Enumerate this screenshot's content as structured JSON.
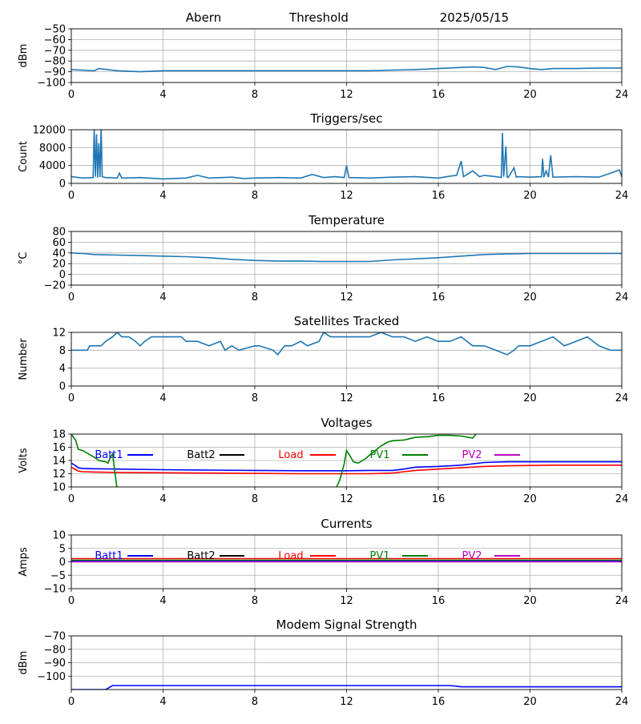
{
  "header": {
    "station": "Abern",
    "kind": "Threshold",
    "date": "2025/05/15"
  },
  "colors": {
    "series": "#1f77b4",
    "grid": "#b0b0b0",
    "Batt1": "#0000ff",
    "Batt2": "#000000",
    "Load": "#ff0000",
    "PV1": "#008000",
    "PV2": "#bf00bf",
    "modem": "#0000ff"
  },
  "chart_data": [
    {
      "type": "line",
      "title": "",
      "xlabel": "",
      "ylabel": "dBm",
      "xlim": [
        0,
        24
      ],
      "ylim": [
        -100,
        -50
      ],
      "xticks": [
        0,
        4,
        8,
        12,
        16,
        20,
        24
      ],
      "yticks": [
        -100,
        -90,
        -80,
        -70,
        -60,
        -50
      ],
      "grid": true,
      "series": [
        {
          "color": "#1f77b4",
          "x": [
            0,
            1,
            1.2,
            2,
            3,
            4,
            6,
            8,
            10,
            12,
            13,
            14,
            15,
            16,
            17,
            17.5,
            18,
            18.5,
            19,
            19.5,
            20,
            20.5,
            21,
            22,
            23,
            24
          ],
          "y": [
            -88,
            -89,
            -87,
            -89,
            -90,
            -89,
            -89,
            -89,
            -89,
            -89,
            -89,
            -88.5,
            -88,
            -87,
            -86,
            -85.5,
            -86,
            -88,
            -85,
            -85.5,
            -87,
            -88,
            -87,
            -87,
            -86.5,
            -86.5
          ]
        }
      ]
    },
    {
      "type": "line",
      "title": "Triggers/sec",
      "xlabel": "",
      "ylabel": "Count",
      "xlim": [
        0,
        24
      ],
      "ylim": [
        0,
        12000
      ],
      "xticks": [
        0,
        4,
        8,
        12,
        16,
        20,
        24
      ],
      "yticks": [
        0,
        4000,
        8000,
        12000
      ],
      "grid": true,
      "series": [
        {
          "color": "#1f77b4",
          "x": [
            0,
            0.5,
            0.95,
            1.0,
            1.05,
            1.1,
            1.15,
            1.2,
            1.25,
            1.3,
            1.35,
            1.5,
            2.0,
            2.1,
            2.2,
            3,
            4,
            5,
            5.5,
            6,
            7,
            7.5,
            8,
            9,
            10,
            10.5,
            11,
            11.5,
            11.9,
            12.0,
            12.1,
            13,
            14,
            15,
            16,
            16.5,
            16.8,
            17.0,
            17.1,
            17.5,
            17.8,
            18,
            18.5,
            18.75,
            18.8,
            18.85,
            18.95,
            19.0,
            19.05,
            19.3,
            19.4,
            19.5,
            20,
            20.5,
            20.55,
            20.6,
            20.7,
            20.8,
            20.9,
            21,
            22,
            23,
            23.9,
            24
          ],
          "y": [
            1500,
            1200,
            1300,
            12000,
            1500,
            11000,
            1300,
            9000,
            1400,
            12500,
            1500,
            1300,
            1200,
            2300,
            1200,
            1300,
            1000,
            1200,
            1800,
            1200,
            1400,
            1100,
            1200,
            1300,
            1200,
            2000,
            1300,
            1500,
            1300,
            4000,
            1300,
            1200,
            1400,
            1500,
            1200,
            1600,
            1800,
            5000,
            1500,
            2800,
            1500,
            1800,
            1500,
            1300,
            11300,
            1500,
            8300,
            1400,
            1300,
            3500,
            1400,
            1500,
            1400,
            1500,
            5500,
            1400,
            2800,
            1400,
            6300,
            1400,
            1500,
            1400,
            3000,
            1500
          ]
        }
      ]
    },
    {
      "type": "line",
      "title": "Temperature",
      "xlabel": "",
      "ylabel": "°C",
      "xlim": [
        0,
        24
      ],
      "ylim": [
        -20,
        80
      ],
      "xticks": [
        0,
        4,
        8,
        12,
        16,
        20,
        24
      ],
      "yticks": [
        -20,
        0,
        20,
        40,
        60,
        80
      ],
      "grid": true,
      "series": [
        {
          "color": "#1f77b4",
          "x": [
            0,
            0.5,
            1,
            2,
            3,
            4,
            5,
            6,
            7,
            8,
            9,
            10,
            11,
            12,
            13,
            14,
            15,
            16,
            17,
            18,
            19,
            20,
            21,
            22,
            23,
            24
          ],
          "y": [
            40,
            39,
            37,
            36,
            35,
            34,
            33,
            31,
            28,
            26,
            25,
            25,
            24,
            24,
            24,
            27,
            29,
            31,
            34,
            37,
            38,
            39,
            39,
            39,
            39,
            39
          ]
        }
      ]
    },
    {
      "type": "line",
      "title": "Satellites Tracked",
      "xlabel": "",
      "ylabel": "Number",
      "xlim": [
        0,
        24
      ],
      "ylim": [
        0,
        12
      ],
      "xticks": [
        0,
        4,
        8,
        12,
        16,
        20,
        24
      ],
      "yticks": [
        0,
        4,
        8,
        12
      ],
      "grid": true,
      "series": [
        {
          "color": "#1f77b4",
          "x": [
            0,
            0.7,
            0.8,
            1.0,
            1.3,
            1.5,
            1.8,
            2.0,
            2.2,
            2.5,
            2.8,
            3.0,
            3.2,
            3.5,
            4,
            4.8,
            5.0,
            5.5,
            6.0,
            6.5,
            6.7,
            7.0,
            7.3,
            8.0,
            8.2,
            8.8,
            9.0,
            9.3,
            9.6,
            10.0,
            10.3,
            10.8,
            11.0,
            11.3,
            12,
            13,
            13.5,
            14,
            14.5,
            15,
            15.5,
            16,
            16.5,
            17,
            17.5,
            18,
            18.5,
            19,
            19.3,
            19.5,
            20,
            20.5,
            21,
            21.5,
            22,
            22.5,
            23,
            23.5,
            24
          ],
          "y": [
            8,
            8,
            9,
            9,
            9,
            10,
            11,
            12,
            11,
            11,
            10,
            9,
            10,
            11,
            11,
            11,
            10,
            10,
            9,
            10,
            8,
            9,
            8,
            9,
            9,
            8,
            7,
            9,
            9,
            10,
            9,
            10,
            12,
            11,
            11,
            11,
            12,
            11,
            11,
            10,
            11,
            10,
            10,
            11,
            9,
            9,
            8,
            7,
            8,
            9,
            9,
            10,
            11,
            9,
            10,
            11,
            9,
            8,
            8
          ]
        }
      ]
    },
    {
      "type": "line",
      "title": "Voltages",
      "xlabel": "",
      "ylabel": "Volts",
      "xlim": [
        0,
        24
      ],
      "ylim": [
        10,
        18
      ],
      "xticks": [
        0,
        4,
        8,
        12,
        16,
        20,
        24
      ],
      "yticks": [
        10,
        12,
        14,
        16,
        18
      ],
      "grid": true,
      "legend": [
        "Batt1",
        "Batt2",
        "Load",
        "PV1",
        "PV2"
      ],
      "series": [
        {
          "name": "Batt1",
          "color": "#0000ff",
          "x": [
            0,
            0.2,
            0.3,
            0.5,
            1,
            2,
            4,
            6,
            8,
            10,
            12,
            13,
            14,
            14.5,
            15,
            16,
            17,
            18,
            19,
            20,
            21,
            22,
            23,
            24
          ],
          "y": [
            13.6,
            13.2,
            12.9,
            12.8,
            12.75,
            12.7,
            12.6,
            12.55,
            12.5,
            12.45,
            12.45,
            12.5,
            12.5,
            12.7,
            13.0,
            13.1,
            13.3,
            13.7,
            13.8,
            13.8,
            13.8,
            13.8,
            13.8,
            13.8
          ]
        },
        {
          "name": "Load",
          "color": "#ff0000",
          "x": [
            0,
            0.2,
            0.3,
            0.5,
            1,
            2,
            4,
            6,
            8,
            10,
            12,
            13,
            14,
            14.5,
            15,
            16,
            17,
            18,
            19,
            20,
            21,
            22,
            23,
            24
          ],
          "y": [
            13.0,
            12.6,
            12.4,
            12.3,
            12.25,
            12.2,
            12.15,
            12.1,
            12.05,
            12.0,
            12.0,
            12.0,
            12.1,
            12.3,
            12.5,
            12.7,
            12.9,
            13.1,
            13.2,
            13.25,
            13.3,
            13.3,
            13.3,
            13.3
          ]
        },
        {
          "name": "PV1",
          "color": "#008000",
          "x": [
            0,
            0.2,
            0.3,
            0.5,
            0.8,
            1,
            1.2,
            1.5,
            1.6,
            1.7,
            1.8,
            2.0,
            11.5,
            11.7,
            11.9,
            12.0,
            12.1,
            12.3,
            12.5,
            12.8,
            13,
            13.5,
            13.8,
            14,
            14.5,
            15,
            15.5,
            16,
            16.5,
            17,
            17.5,
            17.6,
            17.7
          ],
          "y": [
            18.0,
            17.0,
            15.7,
            15.5,
            14.9,
            14.5,
            14.0,
            13.8,
            13.6,
            14.5,
            15.0,
            9.5,
            9.5,
            11.0,
            13.5,
            15.5,
            15.0,
            13.8,
            13.6,
            14.2,
            14.8,
            16.2,
            16.8,
            17.0,
            17.1,
            17.5,
            17.6,
            17.8,
            17.8,
            17.7,
            17.4,
            17.8,
            18.4
          ]
        },
        {
          "name": "Batt2",
          "color": "#000000",
          "x": [],
          "y": []
        },
        {
          "name": "PV2",
          "color": "#bf00bf",
          "x": [],
          "y": []
        }
      ]
    },
    {
      "type": "line",
      "title": "Currents",
      "xlabel": "",
      "ylabel": "Amps",
      "xlim": [
        0,
        24
      ],
      "ylim": [
        -10,
        10
      ],
      "xticks": [
        0,
        4,
        8,
        12,
        16,
        20,
        24
      ],
      "yticks": [
        -10,
        -5,
        0,
        5,
        10
      ],
      "grid": true,
      "legend": [
        "Batt1",
        "Batt2",
        "Load",
        "PV1",
        "PV2"
      ],
      "series": [
        {
          "name": "Load",
          "color": "#ff0000",
          "x": [
            0,
            24
          ],
          "y": [
            1.2,
            1.2
          ]
        },
        {
          "name": "PV1",
          "color": "#008000",
          "x": [
            0,
            24
          ],
          "y": [
            0.6,
            0.6
          ]
        },
        {
          "name": "Batt1",
          "color": "#0000ff",
          "x": [
            0,
            24
          ],
          "y": [
            0.2,
            0.2
          ]
        },
        {
          "name": "PV2",
          "color": "#bf00bf",
          "x": [
            0,
            24
          ],
          "y": [
            0.0,
            0.0
          ]
        },
        {
          "name": "Batt2",
          "color": "#000000",
          "x": [],
          "y": []
        }
      ]
    },
    {
      "type": "line",
      "title": "Modem Signal Strength",
      "xlabel": "",
      "ylabel": "dBm",
      "xlim": [
        0,
        24
      ],
      "ylim": [
        -110,
        -70
      ],
      "xticks": [
        0,
        4,
        8,
        12,
        16,
        20,
        24
      ],
      "yticks": [
        -100,
        -90,
        -80,
        -70
      ],
      "grid": true,
      "series": [
        {
          "color": "#0000ff",
          "x": [
            0,
            1.5,
            1.8,
            2.0,
            16.5,
            16.8,
            17.0,
            24
          ],
          "y": [
            -110,
            -110,
            -107,
            -107,
            -107,
            -107.5,
            -108,
            -108
          ]
        }
      ]
    }
  ]
}
